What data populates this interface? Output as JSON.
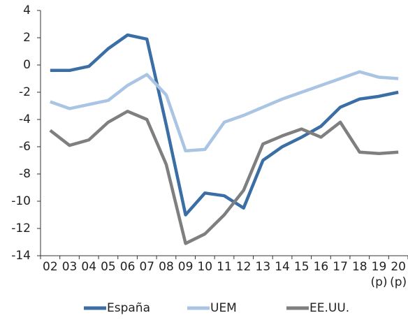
{
  "chart_data": {
    "type": "line",
    "categories": [
      "02",
      "03",
      "04",
      "05",
      "06",
      "07",
      "08",
      "09",
      "10",
      "11",
      "12",
      "13",
      "14",
      "15",
      "16",
      "17",
      "18",
      "19",
      "20"
    ],
    "category_sublabels": [
      null,
      null,
      null,
      null,
      null,
      null,
      null,
      null,
      null,
      null,
      null,
      null,
      null,
      null,
      null,
      null,
      null,
      "(p)",
      "(p)"
    ],
    "series": [
      {
        "name": "España",
        "color": "#3a6ea5",
        "values": [
          -0.4,
          -0.4,
          -0.1,
          1.2,
          2.2,
          1.9,
          -4.4,
          -11.0,
          -9.4,
          -9.6,
          -10.5,
          -7.0,
          -6.0,
          -5.3,
          -4.5,
          -3.1,
          -2.5,
          -2.3,
          -2.0
        ]
      },
      {
        "name": "UEM",
        "color": "#aac4e4",
        "values": [
          -2.7,
          -3.2,
          -2.9,
          -2.6,
          -1.5,
          -0.7,
          -2.2,
          -6.3,
          -6.2,
          -4.2,
          -3.7,
          -3.1,
          -2.5,
          -2.0,
          -1.5,
          -1.0,
          -0.5,
          -0.9,
          -1.0
        ]
      },
      {
        "name": "EE.UU.",
        "color": "#7f7f7f",
        "values": [
          -4.8,
          -5.9,
          -5.5,
          -4.2,
          -3.4,
          -4.0,
          -7.3,
          -13.1,
          -12.4,
          -11.0,
          -9.2,
          -5.8,
          -5.2,
          -4.7,
          -5.3,
          -4.2,
          -6.4,
          -6.5,
          -6.4
        ]
      }
    ],
    "ylim": [
      -14,
      4
    ],
    "yticks": [
      -14,
      -12,
      -10,
      -8,
      -6,
      -4,
      -2,
      0,
      2,
      4
    ],
    "grid": false
  }
}
